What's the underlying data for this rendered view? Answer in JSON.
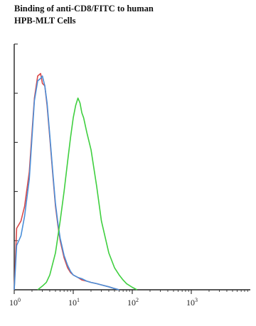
{
  "chart_data": {
    "type": "line",
    "title_lines": [
      "Binding of anti-CD8/FITC to human",
      "HPB-MLT Cells"
    ],
    "xlabel": "",
    "ylabel": "",
    "x_scale": "log",
    "xlim": [
      1,
      10000
    ],
    "ylim": [
      0,
      100
    ],
    "x_ticks": [
      {
        "base": "10",
        "exp": "0",
        "value": 1
      },
      {
        "base": "10",
        "exp": "1",
        "value": 10
      },
      {
        "base": "10",
        "exp": "2",
        "value": 100
      },
      {
        "base": "10",
        "exp": "3",
        "value": 1000
      }
    ],
    "grid": false,
    "legend": "none",
    "series": [
      {
        "color": "#d94a4a",
        "x": [
          1.0,
          1.1,
          1.3,
          1.5,
          1.8,
          2.0,
          2.2,
          2.5,
          2.8,
          3.0,
          3.3,
          3.6,
          4.0,
          4.5,
          5.0,
          5.5,
          6.0,
          7.0,
          8.0,
          9.0,
          10.0,
          12.0,
          14.0,
          17.0,
          20.0,
          25.0,
          30.0,
          40.0,
          50.0,
          60.0
        ],
        "y": [
          0,
          25,
          28,
          34,
          48,
          64,
          78,
          87,
          88,
          84,
          83,
          75,
          62,
          47,
          34,
          26,
          20,
          13,
          9,
          7,
          6,
          5,
          4,
          3.5,
          3,
          2.5,
          2,
          1.2,
          0.5,
          0
        ]
      },
      {
        "color": "#4a8fd9",
        "x": [
          1.0,
          1.1,
          1.3,
          1.5,
          1.8,
          2.0,
          2.2,
          2.5,
          2.8,
          3.0,
          3.3,
          3.6,
          4.0,
          4.5,
          5.0,
          5.5,
          6.0,
          7.0,
          8.0,
          9.0,
          10.0,
          12.0,
          14.0,
          17.0,
          20.0,
          25.0,
          30.0,
          40.0,
          50.0,
          60.0
        ],
        "y": [
          0,
          18,
          22,
          30,
          45,
          62,
          77,
          85,
          86,
          87,
          83,
          76,
          63,
          48,
          35,
          27,
          21,
          14,
          10,
          7.5,
          6,
          5,
          4.5,
          3.5,
          3,
          2.5,
          2,
          1.2,
          0.5,
          0
        ]
      },
      {
        "color": "#3fcf3f",
        "x": [
          2.5,
          3.0,
          3.5,
          4.0,
          5.0,
          6.0,
          7.0,
          8.0,
          9.0,
          10.0,
          11.0,
          12.0,
          13.0,
          14.0,
          15.0,
          17.0,
          20.0,
          25.0,
          30.0,
          40.0,
          50.0,
          60.0,
          70.0,
          80.0,
          100.0,
          120.0
        ],
        "y": [
          0,
          1.5,
          3,
          6,
          15,
          28,
          40,
          52,
          62,
          70,
          75,
          78,
          76,
          72,
          70,
          64,
          57,
          42,
          28,
          15,
          9,
          6,
          4,
          2.5,
          1,
          0
        ]
      }
    ]
  }
}
